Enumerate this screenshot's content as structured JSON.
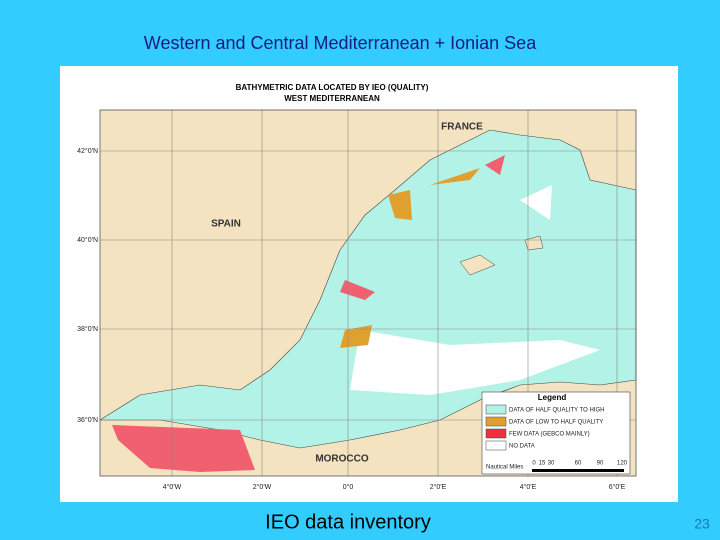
{
  "slide": {
    "title": "Western and Central Mediterranean + Ionian Sea",
    "footer": "IEO data inventory",
    "page_number": "23"
  },
  "map": {
    "title": [
      "BATHYMETRIC DATA LOCATED BY IEO (QUALITY)",
      "WEST MEDITERRANEAN"
    ],
    "countries": [
      "FRANCE",
      "SPAIN",
      "MOROCCO"
    ],
    "lat_labels": [
      "42°0'N",
      "40°0'N",
      "38°0'N",
      "36°0'N"
    ],
    "lon_labels": [
      "4°0'W",
      "2°0'W",
      "0°0",
      "2°0'E",
      "4°0'E",
      "6°0'E"
    ],
    "legend": {
      "title": "Legend",
      "items": [
        "DATA OF HALF QUALITY TO HIGH",
        "DATA OF LOW TO HALF QUALITY",
        "FEW DATA (GEBCO MAINLY)",
        "NO DATA"
      ]
    },
    "scale": {
      "unit": "Nautical Miles",
      "ticks": [
        "0",
        "15",
        "30",
        "60",
        "90",
        "120"
      ]
    }
  }
}
